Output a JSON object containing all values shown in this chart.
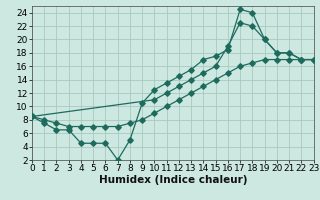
{
  "line1_x": [
    0,
    1,
    2,
    3,
    4,
    5,
    6,
    7,
    8,
    9,
    10,
    11,
    12,
    13,
    14,
    15,
    16,
    17,
    18,
    19,
    20,
    21,
    22,
    23
  ],
  "line1_y": [
    8.5,
    8.0,
    7.5,
    7.0,
    7.0,
    7.0,
    7.0,
    7.0,
    7.5,
    8.0,
    9.0,
    10.0,
    11.0,
    12.0,
    13.0,
    14.0,
    15.0,
    16.0,
    16.5,
    17.0,
    17.0,
    17.0,
    17.0,
    17.0
  ],
  "line2_x": [
    0,
    1,
    2,
    3,
    4,
    5,
    6,
    7,
    8,
    9,
    10,
    11,
    12,
    13,
    14,
    15,
    16,
    17,
    18,
    19,
    20,
    21,
    22,
    23
  ],
  "line2_y": [
    8.5,
    7.5,
    6.5,
    6.5,
    4.5,
    4.5,
    4.5,
    2.0,
    5.0,
    10.5,
    12.5,
    13.5,
    14.5,
    15.5,
    17.0,
    17.5,
    18.5,
    24.5,
    24.0,
    20.0,
    18.0,
    18.0,
    17.0,
    17.0
  ],
  "line3_x": [
    0,
    10,
    11,
    12,
    13,
    14,
    15,
    16,
    17,
    18,
    19,
    20,
    21,
    22,
    23
  ],
  "line3_y": [
    8.5,
    11.0,
    12.0,
    13.0,
    14.0,
    15.0,
    16.0,
    19.0,
    22.5,
    22.0,
    20.0,
    18.0,
    18.0,
    17.0,
    17.0
  ],
  "line_color": "#1e6b5e",
  "bg_color": "#cce8e0",
  "grid_color": "#a8c8c0",
  "xlabel": "Humidex (Indice chaleur)",
  "xlim": [
    0,
    23
  ],
  "ylim": [
    2,
    25
  ],
  "xticks": [
    0,
    1,
    2,
    3,
    4,
    5,
    6,
    7,
    8,
    9,
    10,
    11,
    12,
    13,
    14,
    15,
    16,
    17,
    18,
    19,
    20,
    21,
    22,
    23
  ],
  "yticks": [
    2,
    4,
    6,
    8,
    10,
    12,
    14,
    16,
    18,
    20,
    22,
    24
  ],
  "tick_fontsize": 6.5,
  "xlabel_fontsize": 7.5
}
